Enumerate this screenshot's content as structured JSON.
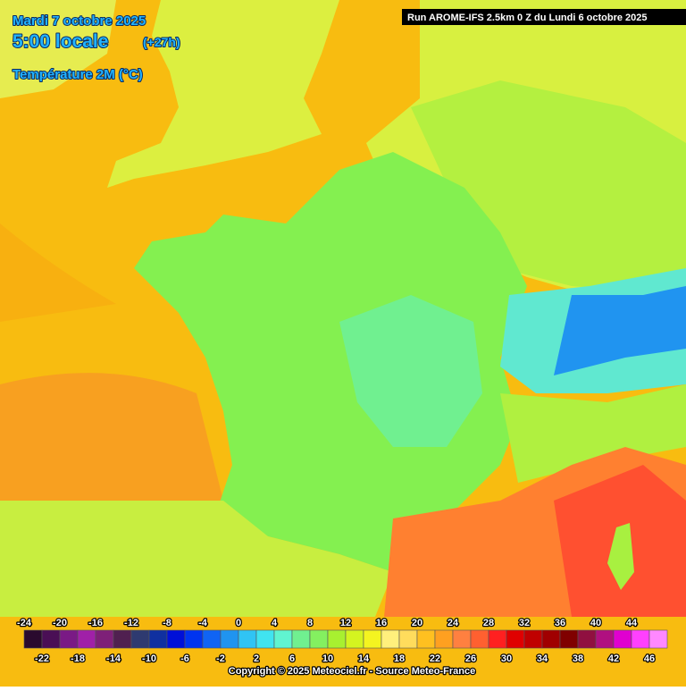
{
  "header": {
    "date": "Mardi 7 octobre 2025",
    "time": "5:00 locale",
    "offset": "(+27h)",
    "field": "Température 2M (°C)",
    "run": "Run AROME-IFS 2.5km 0 Z du Lundi 6 octobre 2025"
  },
  "legend": {
    "stops": [
      {
        "value": -24,
        "color": "#2a0a2e"
      },
      {
        "value": -22,
        "color": "#4a0f55"
      },
      {
        "value": -20,
        "color": "#7a1a85"
      },
      {
        "value": -18,
        "color": "#a020a8"
      },
      {
        "value": -16,
        "color": "#7e2078"
      },
      {
        "value": -14,
        "color": "#502050"
      },
      {
        "value": -12,
        "color": "#2e3a70"
      },
      {
        "value": -10,
        "color": "#1030a0"
      },
      {
        "value": -8,
        "color": "#0010d8"
      },
      {
        "value": -6,
        "color": "#0034f0"
      },
      {
        "value": -4,
        "color": "#1064f4"
      },
      {
        "value": -2,
        "color": "#2094f0"
      },
      {
        "value": 0,
        "color": "#30c4f4"
      },
      {
        "value": 2,
        "color": "#40e4f0"
      },
      {
        "value": 4,
        "color": "#60f4d0"
      },
      {
        "value": 6,
        "color": "#70f090"
      },
      {
        "value": 8,
        "color": "#84f060"
      },
      {
        "value": 10,
        "color": "#a8f030"
      },
      {
        "value": 12,
        "color": "#d4f420"
      },
      {
        "value": 14,
        "color": "#f4f420"
      },
      {
        "value": 16,
        "color": "#fff07c"
      },
      {
        "value": 18,
        "color": "#ffdc5c"
      },
      {
        "value": 20,
        "color": "#ffc020"
      },
      {
        "value": 22,
        "color": "#ffa020"
      },
      {
        "value": 24,
        "color": "#ff8040"
      },
      {
        "value": 26,
        "color": "#ff6030"
      },
      {
        "value": 28,
        "color": "#ff2020"
      },
      {
        "value": 30,
        "color": "#e00000"
      },
      {
        "value": 32,
        "color": "#c00000"
      },
      {
        "value": 34,
        "color": "#a00000"
      },
      {
        "value": 36,
        "color": "#800000"
      },
      {
        "value": 38,
        "color": "#901040"
      },
      {
        "value": 40,
        "color": "#b01080"
      },
      {
        "value": 42,
        "color": "#e000d0"
      },
      {
        "value": 44,
        "color": "#ff40ff"
      },
      {
        "value": 46,
        "color": "#ff88ff"
      }
    ]
  },
  "footer": {
    "copyright": "Copyright © 2025 Meteociel.fr - Source Meteo-France"
  }
}
